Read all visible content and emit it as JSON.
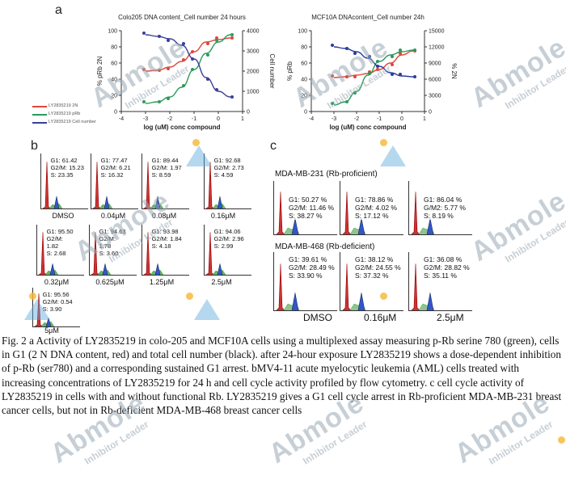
{
  "panels": {
    "a": "a",
    "b": "b",
    "c": "c"
  },
  "chart_data": [
    {
      "type": "line",
      "title": "Colo205 DNA content_Cell number 24 hours",
      "xlabel": "log (uM) conc compound",
      "ylabel_left": "% pRb 2N",
      "ylabel_right": "Cell number",
      "xlim": [
        -4,
        1
      ],
      "ylim_left": [
        0,
        100
      ],
      "ylim_right": [
        0,
        4000
      ],
      "x_ticks": [
        "-4",
        "-3",
        "-2",
        "-1",
        "0",
        "1"
      ],
      "y_left_ticks": [
        "0",
        "20",
        "40",
        "60",
        "80",
        "100"
      ],
      "y_right_ticks": [
        "0",
        "1000",
        "2000",
        "3000",
        "4000"
      ],
      "legend": [
        "LY2835219 2N",
        "LY2835219 pRb",
        "LY2835219 Cell number"
      ],
      "series": [
        {
          "name": "LY2835219 2N",
          "color": "#e0463a",
          "x": [
            -3,
            -2.5,
            -2,
            -1.5,
            -1,
            -0.5,
            0,
            0.5
          ],
          "y": [
            50,
            51,
            55,
            62,
            74,
            86,
            89,
            91
          ]
        },
        {
          "name": "LY2835219 pRb",
          "color": "#2b9a5a",
          "x": [
            -3,
            -2.5,
            -2,
            -1.5,
            -1,
            -0.5,
            0,
            0.5
          ],
          "y": [
            10,
            12,
            18,
            30,
            52,
            72,
            86,
            95
          ]
        },
        {
          "name": "LY2835219 Cell number",
          "color": "#3a3f9a",
          "x": [
            -3,
            -2.5,
            -2,
            -1.5,
            -1,
            -0.5,
            0,
            0.5
          ],
          "y": [
            95,
            93,
            90,
            82,
            65,
            42,
            25,
            18
          ]
        }
      ]
    },
    {
      "type": "line",
      "title": "MCF10A DNAcontent_Cell number 24h",
      "xlabel": "log (uM) conc compound",
      "ylabel_left": "% pRb",
      "ylabel_right": "% 2N",
      "xlim": [
        -4,
        1
      ],
      "ylim_left": [
        0,
        100
      ],
      "ylim_right": [
        0,
        15000
      ],
      "x_ticks": [
        "-4",
        "-3",
        "-2",
        "-1",
        "0",
        "1"
      ],
      "y_left_ticks": [
        "0",
        "20",
        "40",
        "60",
        "80",
        "100"
      ],
      "y_right_ticks": [
        "0",
        "3000",
        "6000",
        "9000",
        "12000",
        "15000"
      ],
      "series": [
        {
          "name": "2N",
          "color": "#e0463a",
          "x": [
            -3,
            -2.5,
            -2,
            -1.5,
            -1,
            -0.5,
            0,
            0.5
          ],
          "y": [
            42,
            43,
            45,
            47,
            52,
            60,
            70,
            75
          ]
        },
        {
          "name": "pRb",
          "color": "#2b9a5a",
          "x": [
            -3,
            -2.5,
            -2,
            -1.5,
            -1,
            -0.5,
            0,
            0.5
          ],
          "y": [
            8,
            12,
            25,
            45,
            62,
            70,
            74,
            76
          ]
        },
        {
          "name": "Cell number",
          "color": "#2a3c9e",
          "x": [
            -3,
            -2.5,
            -2,
            -1.5,
            -1,
            -0.5,
            0,
            0.5
          ],
          "y": [
            80,
            78,
            74,
            66,
            56,
            48,
            44,
            43
          ]
        }
      ]
    }
  ],
  "panel_b": [
    {
      "stats": [
        "G1: 61.42",
        "G2/M: 15.23",
        "S: 23.35"
      ],
      "label": "DMSO"
    },
    {
      "stats": [
        "G1: 77.47",
        "G2/M: 6.21",
        "S: 16.32"
      ],
      "label": "0.04μM"
    },
    {
      "stats": [
        "G1: 89.44",
        "G2/M: 1.97",
        "S: 8.59"
      ],
      "label": "0.08μM"
    },
    {
      "stats": [
        "G1: 92.68",
        "G2/M: 2.73",
        "S: 4.59"
      ],
      "label": "0.16μM"
    },
    {
      "stats": [
        "G1: 95.50",
        "G2/M:",
        "1.82",
        "S: 2.68"
      ],
      "label": "0.32μM"
    },
    {
      "stats": [
        "G1: 94.63",
        "G2/M:",
        "1.78",
        "S: 3.60"
      ],
      "label": "0.625μM"
    },
    {
      "stats": [
        "G1: 93.98",
        "G2/M: 1.84",
        "S: 4.18"
      ],
      "label": "1.25μM"
    },
    {
      "stats": [
        "G1: 94.06",
        "G2/M: 2.96",
        "S: 2.99"
      ],
      "label": "2.5μM"
    },
    {
      "stats": [
        "G1: 95.56",
        "G2/M: 0.54",
        "S: 3.90"
      ],
      "label": "5μM"
    }
  ],
  "panel_c": {
    "row1_title": "MDA-MB-231 (Rb-proficient)",
    "row2_title": "MDA-MB-468 (Rb-deficient)",
    "row1": [
      [
        "G1: 50.27 %",
        "G2/M: 11.46 %",
        "S: 38.27 %"
      ],
      [
        "G1: 78.86 %",
        "G2/M: 4.02 %",
        "S: 17.12 %"
      ],
      [
        "G1: 86.04 %",
        "G/M2: 5.77 %",
        "S: 8.19 %"
      ]
    ],
    "row2": [
      [
        "G1: 39.61 %",
        "G2/M: 28.49 %",
        "S: 33.90 %"
      ],
      [
        "G1: 38.12 %",
        "G2/M: 24.55 %",
        "S: 37.32 %"
      ],
      [
        "G1: 36.08 %",
        "G2/M: 28.82 %",
        "S: 35.11 %"
      ]
    ],
    "labels": [
      "DMSO",
      "0.16μM",
      "2.5μM"
    ]
  },
  "caption": "Fig. 2 a Activity of LY2835219 in colo-205 and MCF10A cells using a multiplexed assay measuring p-Rb serine 780 (green), cells in G1 (2 N DNA content, red) and total cell number (black). after 24-hour exposure LY2835219 shows a dose-dependent inhibition of p-Rb (ser780) and a corresponding sustained G1 arrest. bMV4-11 acute myelocytic leukemia (AML) cells treated with increasing concentrations of LY2835219 for 24 h and cell cycle activity profiled by flow cytometry. c cell cycle activity of LY2835219 in cells with and without functional Rb. LY2835219 gives a G1 cell cycle arrest in Rb-proficient MDA-MB-231 breast cancer cells, but not in Rb-deficient MDA-MB-468 breast cancer cells",
  "watermark": {
    "brand": "Abmole",
    "sub": "Inhibitor Leader"
  }
}
